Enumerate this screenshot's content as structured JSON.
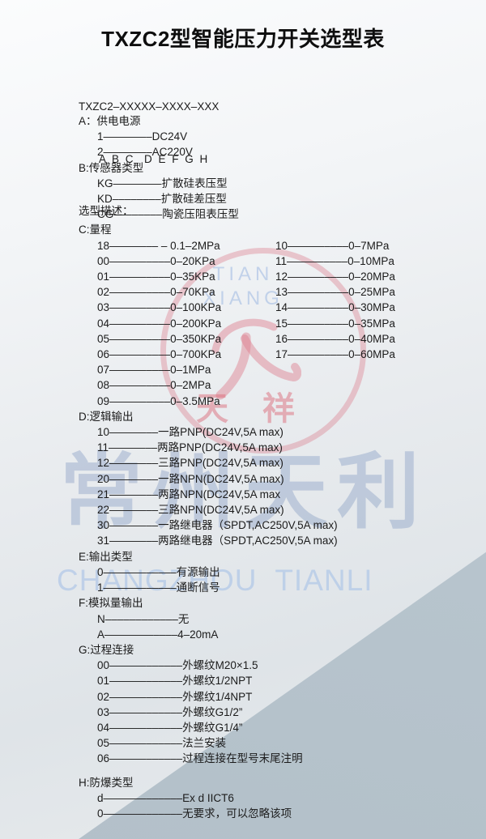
{
  "title": "TXZC2型智能压力开关选型表",
  "model": {
    "code_line": "TXZC2–XXXXX–XXXX–XXX",
    "letters_line": "A B C  D E F G H",
    "desc_label": "选型描述："
  },
  "sections": {
    "a": {
      "header": "A：供电电源",
      "items": [
        "1––––––––DC24V",
        "2––––––––AC220V"
      ]
    },
    "b": {
      "header": "B:传感器类型",
      "items": [
        "KG––––––––扩散硅表压型",
        "KD––––––––扩散硅差压型",
        "CG––––––––陶瓷压阻表压型"
      ]
    },
    "c": {
      "header": "C:量程",
      "rows": [
        {
          "left": "18–––––––– – 0.1–2MPa",
          "right": "10––––––––––0–7MPa"
        },
        {
          "left": "00––––––––––0–20KPa",
          "right": "11––––––––––0–10MPa"
        },
        {
          "left": "01––––––––––0–35KPa",
          "right": "12––––––––––0–20MPa"
        },
        {
          "left": "02––––––––––0–70KPa",
          "right": "13––––––––––0–25MPa"
        },
        {
          "left": "03––––––––––0–100KPa",
          "right": "14––––––––––0–30MPa"
        },
        {
          "left": "04––––––––––0–200KPa",
          "right": "15––––––––––0–35MPa"
        },
        {
          "left": "05––––––––––0–350KPa",
          "right": "16––––––––––0–40MPa"
        },
        {
          "left": "06––––––––––0–700KPa",
          "right": "17––––––––––0–60MPa"
        },
        {
          "left": "07––––––––––0–1MPa",
          "right": ""
        },
        {
          "left": "08––––––––––0–2MPa",
          "right": ""
        },
        {
          "left": "09––––––––––0–3.5MPa",
          "right": ""
        }
      ]
    },
    "d": {
      "header": "D:逻辑输出",
      "items": [
        "10––––––––一路PNP(DC24V,5A max)",
        "11––––––––两路PNP(DC24V,5A max)",
        "12––––––––三路PNP(DC24V,5A max)",
        "20––––––––一路NPN(DC24V,5A max)",
        "21––––––––两路NPN(DC24V,5A max",
        "22––––––––三路NPN(DC24V,5A max)",
        "30––––––––一路继电器（SPDT,AC250V,5A max)",
        "31––––––––两路继电器（SPDT,AC250V,5A max)"
      ]
    },
    "e": {
      "header": "E:输出类型",
      "items": [
        "0––––––––––––有源输出",
        "1––––––––––––通断信号"
      ]
    },
    "f": {
      "header": "F:模拟量输出",
      "items": [
        "N––––––––––––无",
        "A––––––––––––4–20mA"
      ]
    },
    "g": {
      "header": "G:过程连接",
      "items": [
        "00––––––––––––外螺纹M20×1.5",
        "01––––––––––––外螺纹1/2NPT",
        "02––––––––––––外螺纹1/4NPT",
        "03––––––––––––外螺纹G1/2”",
        "04––––––––––––外螺纹G1/4”",
        "05––––––––––––法兰安装",
        "06––––––––––––过程连接在型号末尾注明"
      ]
    },
    "h": {
      "header": "H:防爆类型",
      "items": [
        "d–––––––––––––Ex d IICT6",
        "0–––––––––––––无要求，可以忽略该项"
      ]
    }
  },
  "watermark": {
    "logo_en_line1": "TIAN",
    "logo_en_line2": "XIANG",
    "logo_cn": "天 祥",
    "company_cn": "常州天利",
    "company_en": "CHANGZHOU  TIANLI",
    "ring_color": "#db808e",
    "company_cn_color": "#7f96c0",
    "company_en_color": "#a8c2e7"
  },
  "colors": {
    "background_light": "#eceff2",
    "background_dark_triangle": "#bcc9d2",
    "text": "#1b1b1b"
  }
}
